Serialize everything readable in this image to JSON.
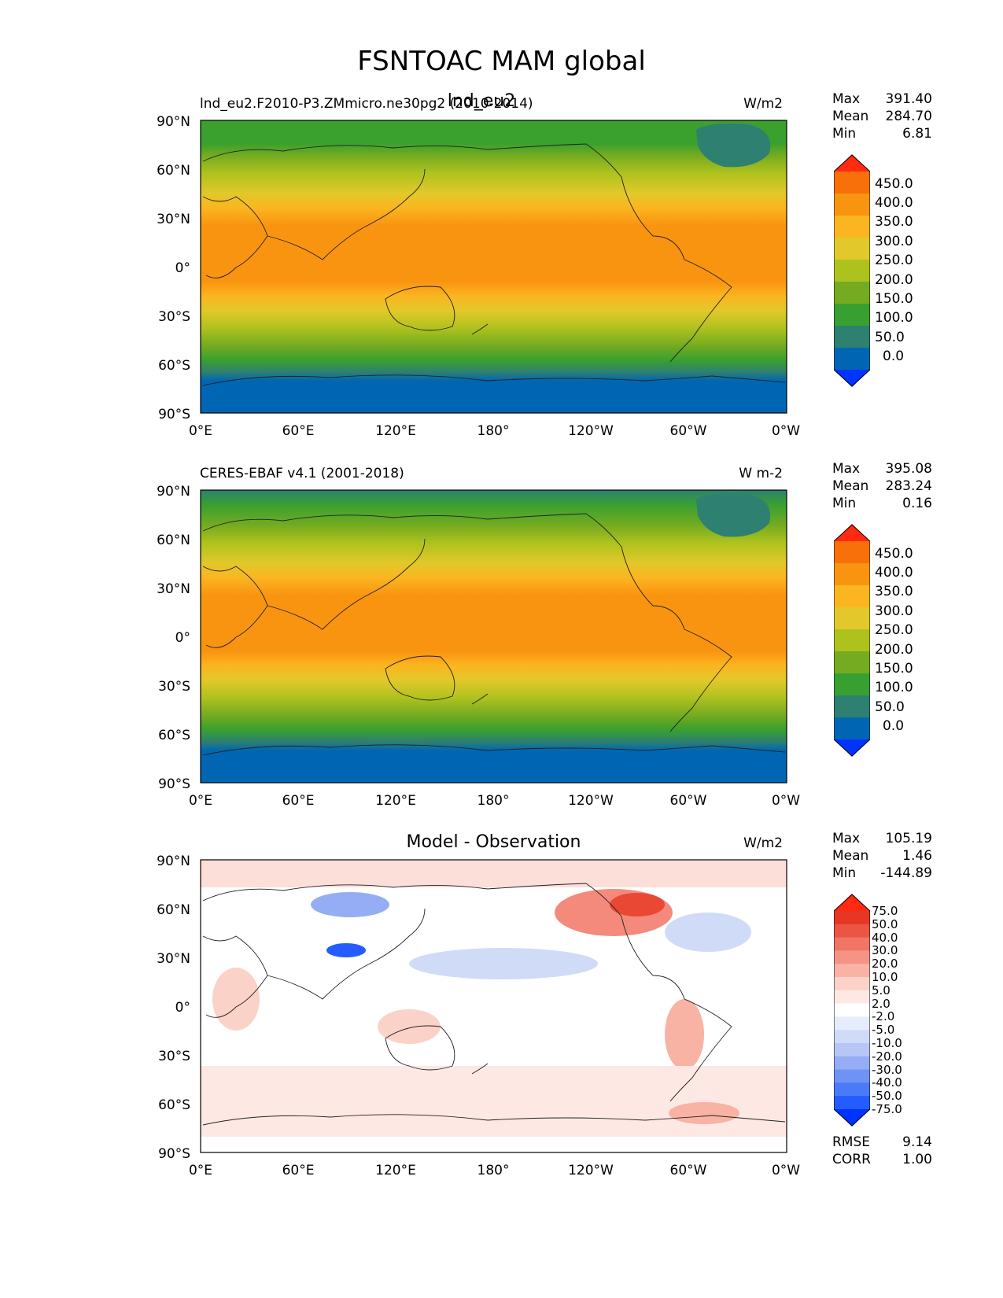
{
  "figure": {
    "title": "FSNTOAC MAM global"
  },
  "axes": {
    "lat_labels": [
      "90°N",
      "60°N",
      "30°N",
      "0°",
      "30°S",
      "60°S",
      "90°S"
    ],
    "lon_labels": [
      "0°E",
      "60°E",
      "120°E",
      "180°",
      "120°W",
      "60°W",
      "0°W"
    ]
  },
  "panels": [
    {
      "left_title": "lnd_eu2.F2010-P3.ZMmicro.ne30pg2 (2010-2014)",
      "center_title": "lnd_eu2",
      "units": "W/m2",
      "stats": {
        "max_label": "Max",
        "max": "391.40",
        "mean_label": "Mean",
        "mean": "284.70",
        "min_label": "Min",
        "min": "6.81"
      },
      "colorbar_ticks": [
        "450.0",
        "400.0",
        "350.0",
        "300.0",
        "250.0",
        "200.0",
        "150.0",
        "100.0",
        "50.0",
        "0.0"
      ]
    },
    {
      "left_title": "CERES-EBAF v4.1 (2001-2018)",
      "center_title": "",
      "units": "W m-2",
      "stats": {
        "max_label": "Max",
        "max": "395.08",
        "mean_label": "Mean",
        "mean": "283.24",
        "min_label": "Min",
        "min": "0.16"
      },
      "colorbar_ticks": [
        "450.0",
        "400.0",
        "350.0",
        "300.0",
        "250.0",
        "200.0",
        "150.0",
        "100.0",
        "50.0",
        "0.0"
      ]
    },
    {
      "left_title": "",
      "center_title": "Model - Observation",
      "units": "W/m2",
      "stats": {
        "max_label": "Max",
        "max": "105.19",
        "mean_label": "Mean",
        "mean": "1.46",
        "min_label": "Min",
        "min": "-144.89"
      },
      "colorbar_ticks": [
        "75.0",
        "50.0",
        "40.0",
        "30.0",
        "20.0",
        "10.0",
        "5.0",
        "2.0",
        "-2.0",
        "-5.0",
        "-10.0",
        "-20.0",
        "-30.0",
        "-40.0",
        "-50.0",
        "-75.0"
      ],
      "rmse_label": "RMSE",
      "rmse": "9.14",
      "corr_label": "CORR",
      "corr": "1.00"
    }
  ],
  "colors": {
    "abs_colormap": [
      "#0033ff",
      "#0066b3",
      "#2e8070",
      "#38a030",
      "#74ab20",
      "#aec21e",
      "#e2c82a",
      "#fbb520",
      "#f99410",
      "#f7700a",
      "#ff2a10"
    ],
    "diff_colormap": [
      "#0033ff",
      "#245cff",
      "#4a7af7",
      "#6e93f5",
      "#94adf5",
      "#b5c6f7",
      "#d0dbf8",
      "#e6ecfb",
      "#ffffff",
      "#fde8e4",
      "#fbd2c8",
      "#f8b3a5",
      "#f59484",
      "#f17564",
      "#ec5444",
      "#e63724",
      "#ff2a10"
    ]
  }
}
